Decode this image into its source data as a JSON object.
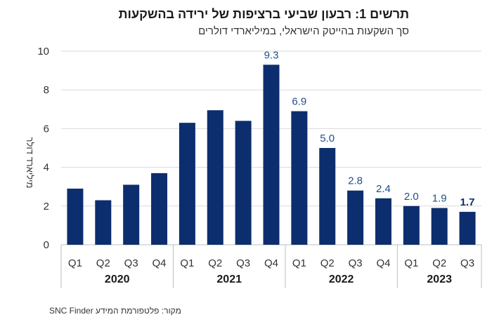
{
  "chart_data": {
    "type": "bar",
    "title": "תרשים 1: רבעון שביעי ברציפות של ירידה בהשקעות",
    "subtitle": "סך השקעות בהייטק הישראלי, במיליארדי דולרים",
    "ylabel": "מיליארד דולר",
    "ylim": [
      0,
      10
    ],
    "yticks": [
      "0",
      "2",
      "4",
      "6",
      "8",
      "10"
    ],
    "grid": true,
    "categories": [
      "Q1",
      "Q2",
      "Q3",
      "Q4",
      "Q1",
      "Q2",
      "Q3",
      "Q4",
      "Q1",
      "Q2",
      "Q3",
      "Q4",
      "Q1",
      "Q2",
      "Q3"
    ],
    "values": [
      2.9,
      2.3,
      3.1,
      3.7,
      6.3,
      6.95,
      6.4,
      9.3,
      6.9,
      5.0,
      2.8,
      2.4,
      2.0,
      1.9,
      1.7
    ],
    "data_labels": [
      "",
      "",
      "",
      "",
      "",
      "",
      "",
      "9.3",
      "6.9",
      "5.0",
      "2.8",
      "2.4",
      "2.0",
      "1.9",
      "1.7"
    ],
    "groups": [
      {
        "label": "2020",
        "count": 4
      },
      {
        "label": "2021",
        "count": 4
      },
      {
        "label": "2022",
        "count": 4
      },
      {
        "label": "2023",
        "count": 3
      }
    ],
    "bar_color": "#0c2e6e",
    "label_color": "#1f4e8c",
    "grid_color": "#d9d9d9"
  },
  "source": "מקור: פלטפורמת המידע SNC Finder"
}
